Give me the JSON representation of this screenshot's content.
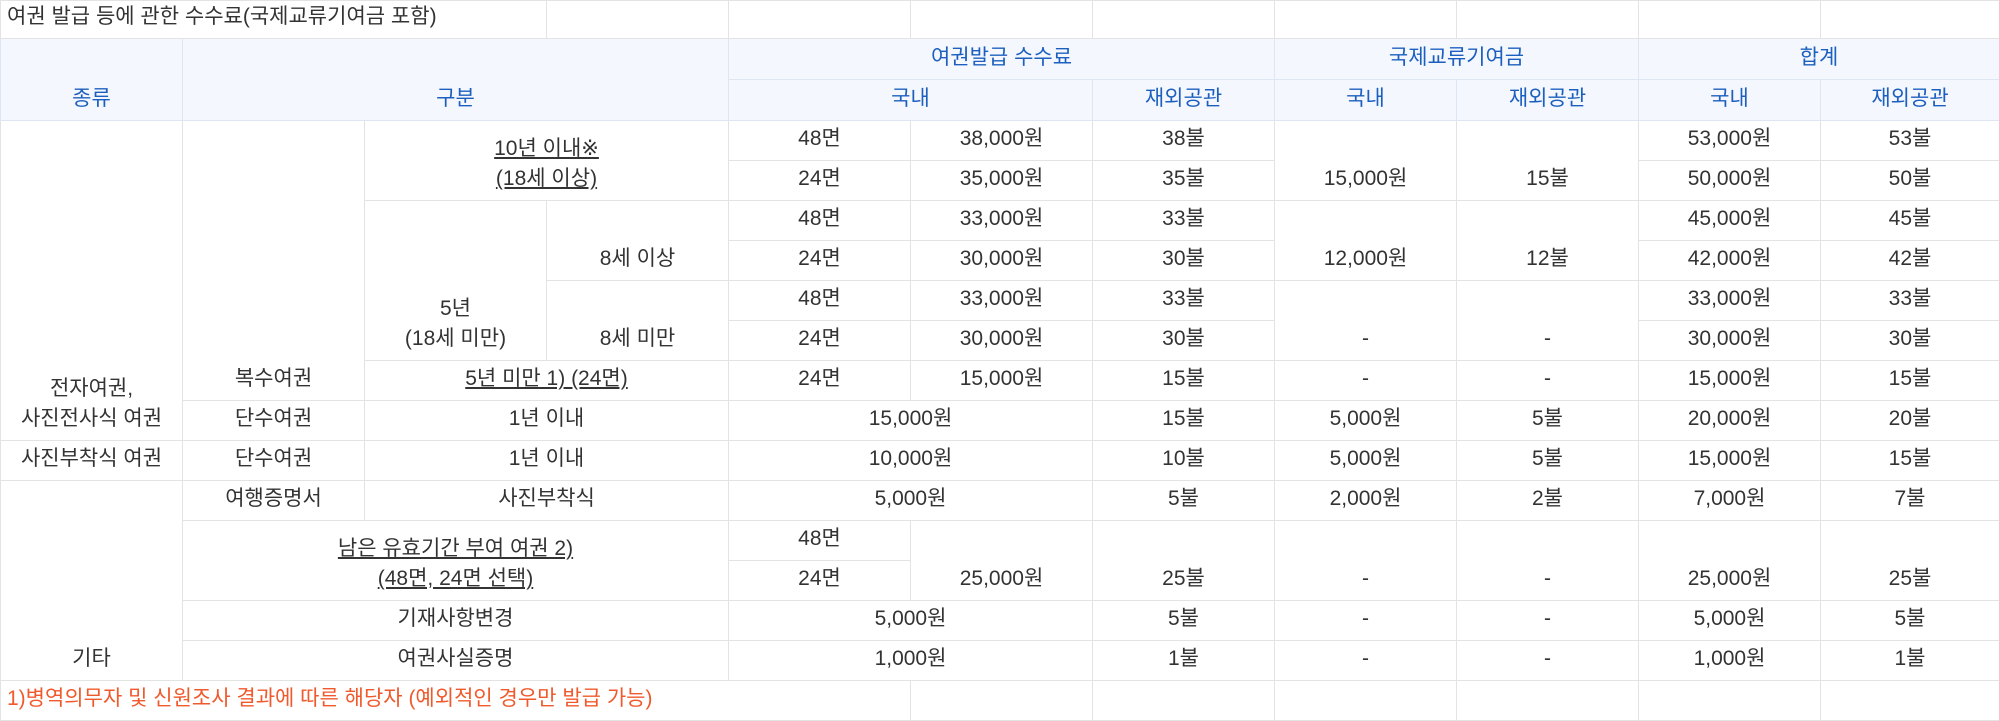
{
  "title": "여권 발급 등에 관한 수수료(국제교류기여금 포함)",
  "header": {
    "kind": "종류",
    "division": "구분",
    "groups": [
      "여권발급 수수료",
      "국제교류기여금",
      "합계"
    ],
    "sub": [
      "국내",
      "재외공관",
      "국내",
      "재외공관",
      "국내",
      "재외공관"
    ]
  },
  "rows": [
    [
      [
        "전자여권,",
        "사진전사식 여권"
      ],
      "복수여권",
      [
        "10년 이내※",
        "(18세 이상)"
      ],
      "48면",
      "38,000원",
      "38불",
      "15,000원",
      "15불",
      "53,000원",
      "53불"
    ],
    [
      "24면",
      "35,000원",
      "35불",
      "50,000원",
      "50불"
    ],
    [
      [
        "5년",
        "(18세 미만)"
      ],
      "8세 이상",
      "48면",
      "33,000원",
      "33불",
      "12,000원",
      "12불",
      "45,000원",
      "45불"
    ],
    [
      "24면",
      "30,000원",
      "30불",
      "42,000원",
      "42불"
    ],
    [
      "8세 미만",
      "48면",
      "33,000원",
      "33불",
      "-",
      "-",
      "33,000원",
      "33불"
    ],
    [
      "24면",
      "30,000원",
      "30불",
      "30,000원",
      "30불"
    ],
    [
      "5년 미만 1) (24면)",
      "24면",
      "15,000원",
      "15불",
      "-",
      "-",
      "15,000원",
      "15불"
    ],
    [
      "단수여권",
      "1년 이내",
      "15,000원",
      "15불",
      "5,000원",
      "5불",
      "20,000원",
      "20불"
    ],
    [
      "사진부착식 여권",
      "단수여권",
      "1년 이내",
      "10,000원",
      "10불",
      "5,000원",
      "5불",
      "15,000원",
      "15불"
    ],
    [
      "기타",
      "여행증명서",
      "사진부착식",
      "5,000원",
      "5불",
      "2,000원",
      "2불",
      "7,000원",
      "7불"
    ],
    [
      [
        "남은 유효기간 부여 여권 2)",
        "(48면, 24면 선택)"
      ],
      "48면",
      "25,000원",
      "25불",
      "-",
      "-",
      "25,000원",
      "25불"
    ],
    [
      "24면"
    ],
    [
      "기재사항변경",
      "5,000원",
      "5불",
      "-",
      "-",
      "5,000원",
      "5불"
    ],
    [
      "여권사실증명",
      "1,000원",
      "1불",
      "-",
      "-",
      "1,000원",
      "1불"
    ]
  ],
  "footnote": "1)병역의무자 및 신원조사 결과에 따른 해당자 (예외적인 경우만 발급 가능)"
}
